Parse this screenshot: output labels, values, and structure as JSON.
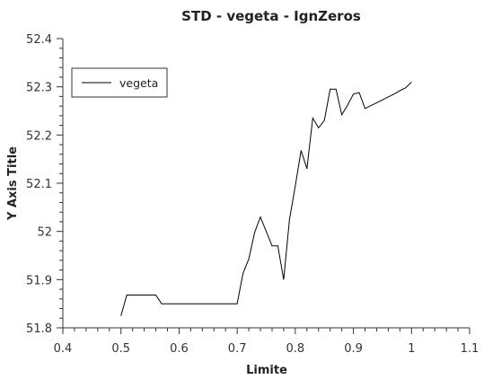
{
  "chart_data": {
    "type": "line",
    "title": "STD - vegeta - IgnZeros",
    "xlabel": "Limite",
    "ylabel": "Y Axis Title",
    "xlim": [
      0.4,
      1.1
    ],
    "ylim": [
      51.8,
      52.4
    ],
    "x_ticks": [
      "0.4",
      "0.5",
      "0.6",
      "0.7",
      "0.8",
      "0.9",
      "1",
      "1.1"
    ],
    "y_ticks": [
      "51.8",
      "51.9",
      "52",
      "52.1",
      "52.2",
      "52.3",
      "52.4"
    ],
    "grid": false,
    "legend_position": "top-left",
    "line_color": "#000000",
    "series": [
      {
        "name": "vegeta",
        "x": [
          0.5,
          0.51,
          0.52,
          0.53,
          0.54,
          0.55,
          0.56,
          0.57,
          0.58,
          0.59,
          0.6,
          0.61,
          0.62,
          0.63,
          0.64,
          0.65,
          0.66,
          0.67,
          0.68,
          0.69,
          0.7,
          0.71,
          0.72,
          0.73,
          0.74,
          0.75,
          0.76,
          0.77,
          0.78,
          0.79,
          0.8,
          0.81,
          0.82,
          0.83,
          0.84,
          0.85,
          0.86,
          0.87,
          0.88,
          0.89,
          0.9,
          0.91,
          0.92,
          0.93,
          0.94,
          0.95,
          0.96,
          0.97,
          0.98,
          0.99,
          1.0
        ],
        "y": [
          51.825,
          51.868,
          51.868,
          51.868,
          51.868,
          51.868,
          51.868,
          51.85,
          51.85,
          51.85,
          51.85,
          51.85,
          51.85,
          51.85,
          51.85,
          51.85,
          51.85,
          51.85,
          51.85,
          51.85,
          51.85,
          51.913,
          51.943,
          51.998,
          52.03,
          52.0,
          51.97,
          51.97,
          51.9,
          52.025,
          52.095,
          52.168,
          52.13,
          52.235,
          52.215,
          52.23,
          52.295,
          52.295,
          52.242,
          52.262,
          52.285,
          52.288,
          52.255,
          52.261,
          52.267,
          52.273,
          52.279,
          52.285,
          52.292,
          52.298,
          52.31
        ]
      }
    ]
  }
}
